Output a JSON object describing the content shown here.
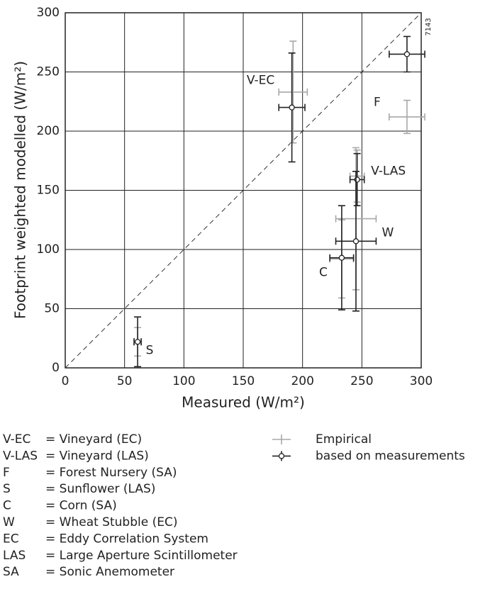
{
  "chart_data": {
    "type": "scatter",
    "figure_id": "7143",
    "xlabel": "Measured (W/m²)",
    "ylabel": "Footprint weighted modelled (W/m²)",
    "xlim": [
      0,
      300
    ],
    "ylim": [
      0,
      300
    ],
    "xticks": [
      0,
      50,
      100,
      150,
      200,
      250,
      300
    ],
    "yticks": [
      0,
      50,
      100,
      150,
      200,
      250,
      300
    ],
    "grid": true,
    "point_labels": [
      "V-EC",
      "F",
      "V-LAS",
      "W",
      "C",
      "S"
    ],
    "series": [
      {
        "name": "Empirical",
        "color": "#a8a8a8",
        "marker": "none",
        "x": [
          192,
          288,
          246,
          245,
          233,
          61
        ],
        "values": [
          233,
          212,
          162,
          126,
          92,
          22
        ],
        "xerr": [
          12,
          15,
          6,
          17,
          10,
          3
        ],
        "yerr": [
          43,
          14,
          22,
          60,
          33,
          12
        ]
      },
      {
        "name": "based on measurements",
        "color": "#222222",
        "marker": "circle",
        "x": [
          191,
          288,
          246,
          245,
          233,
          61
        ],
        "values": [
          220,
          265,
          159,
          107,
          93,
          22
        ],
        "xerr": [
          11,
          15,
          6,
          17,
          10,
          3
        ],
        "yerr": [
          46,
          15,
          22,
          59,
          44,
          21
        ]
      }
    ],
    "definitions": [
      {
        "abbr": "V-EC",
        "text": "= Vineyard (EC)"
      },
      {
        "abbr": "V-LAS",
        "text": "= Vineyard (LAS)"
      },
      {
        "abbr": "F",
        "text": "= Forest Nursery (SA)"
      },
      {
        "abbr": "S",
        "text": "= Sunflower (LAS)"
      },
      {
        "abbr": "C",
        "text": "= Corn (SA)"
      },
      {
        "abbr": "W",
        "text": "= Wheat Stubble (EC)"
      },
      {
        "abbr": "EC",
        "text": "= Eddy Correlation System"
      },
      {
        "abbr": "LAS",
        "text": "= Large Aperture Scintillometer"
      },
      {
        "abbr": "SA",
        "text": "= Sonic Anemometer"
      }
    ]
  }
}
